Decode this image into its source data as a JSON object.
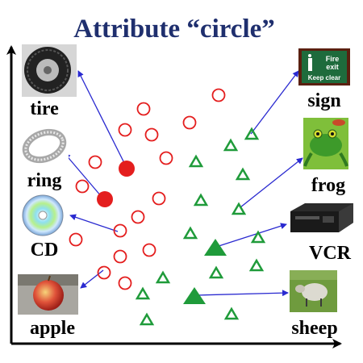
{
  "title": "Attribute “circle”",
  "colors": {
    "title": "#1f2f6e",
    "circle_marker": "#e41e1e",
    "triangle_marker": "#1f9b3a",
    "arrow": "#2a2ad0",
    "axis": "#000000"
  },
  "labels": {
    "tire": "tire",
    "ring": "ring",
    "cd": "CD",
    "apple": "apple",
    "sign": "sign",
    "frog": "frog",
    "vcr": "VCR",
    "sheep": "sheep"
  },
  "sign_text": {
    "line1": "Fire",
    "line2": "exit",
    "line3": "Keep clear"
  },
  "icons": [
    "tire-image",
    "ring-image",
    "cd-image",
    "apple-image",
    "fire-exit-sign-image",
    "frog-image",
    "vcr-image",
    "sheep-image"
  ]
}
